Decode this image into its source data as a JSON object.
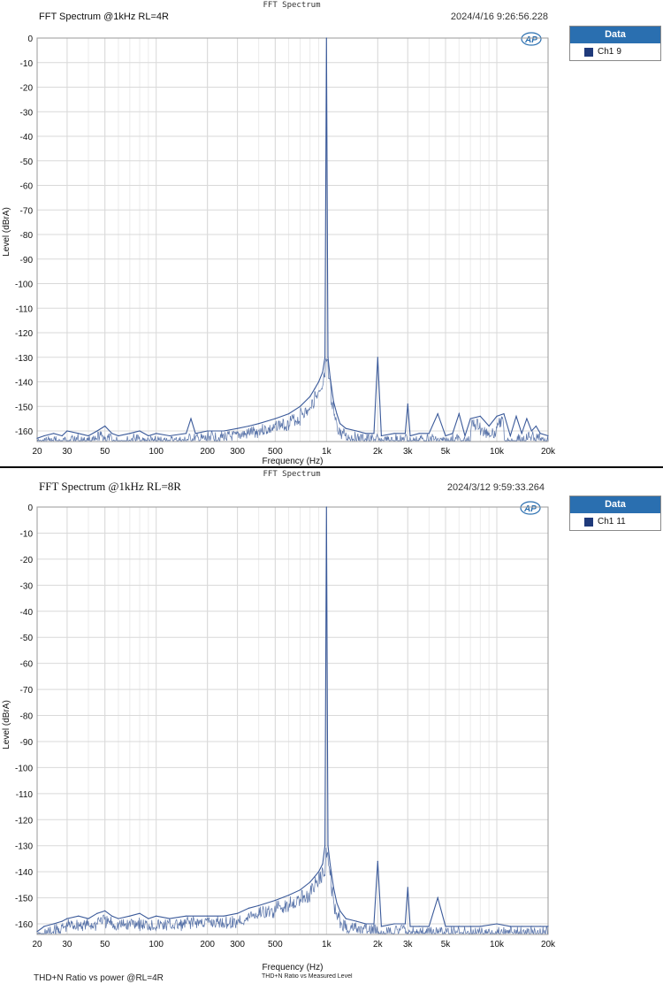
{
  "charts": [
    {
      "id": "top",
      "header_title": "FFT Spectrum",
      "title": "FFT Spectrum @1kHz RL=4R",
      "timestamp": "2024/4/16 9:26:56.228",
      "logo_text": "AP",
      "legend_title": "Data",
      "legend_entry": "Ch1",
      "legend_count": "9",
      "xlabel": "Frequency (Hz)",
      "ylabel": "Level (dBrA)"
    },
    {
      "id": "bottom",
      "header_title": "FFT Spectrum",
      "title": "FFT Spectrum @1kHz RL=8R",
      "timestamp": "2024/3/12 9:59:33.264",
      "logo_text": "AP",
      "legend_title": "Data",
      "legend_entry": "Ch1",
      "legend_count": "11",
      "xlabel": "Frequency (Hz)",
      "ylabel": "Level (dBrA)"
    }
  ],
  "footer": {
    "left_text": "THD+N Ratio vs power @RL=4R",
    "center_text": "THD+N Ratio vs Measured Level"
  },
  "colors": {
    "trace": "#3b5a9a",
    "legend_header": "#2a6fb0",
    "grid": "#d9d9d9"
  },
  "chart_data": [
    {
      "type": "line",
      "title": "FFT Spectrum @1kHz RL=4R",
      "xlabel": "Frequency (Hz)",
      "ylabel": "Level (dBrA)",
      "x_scale": "log",
      "xlim": [
        20,
        20000
      ],
      "ylim": [
        -165,
        0
      ],
      "x_ticks": [
        20,
        30,
        50,
        100,
        200,
        300,
        500,
        1000,
        2000,
        3000,
        5000,
        10000,
        20000
      ],
      "x_tick_labels": [
        "20",
        "30",
        "50",
        "100",
        "200",
        "300",
        "500",
        "1k",
        "2k",
        "3k",
        "5k",
        "10k",
        "20k"
      ],
      "y_ticks": [
        0,
        -10,
        -20,
        -30,
        -40,
        -50,
        -60,
        -70,
        -80,
        -90,
        -100,
        -110,
        -120,
        -130,
        -140,
        -150,
        -160
      ],
      "grid": true,
      "legend": "right",
      "series": [
        {
          "name": "Ch1",
          "x": [
            20,
            22,
            25,
            28,
            30,
            35,
            40,
            45,
            50,
            55,
            60,
            70,
            80,
            90,
            100,
            120,
            150,
            160,
            170,
            200,
            250,
            300,
            350,
            400,
            500,
            600,
            700,
            800,
            850,
            900,
            950,
            980,
            1000,
            1020,
            1050,
            1100,
            1150,
            1200,
            1300,
            1500,
            1700,
            1900,
            2000,
            2100,
            2500,
            2900,
            3000,
            3100,
            3500,
            4000,
            4500,
            5000,
            5500,
            6000,
            6500,
            7000,
            8000,
            9000,
            10000,
            11000,
            12000,
            13000,
            14000,
            15000,
            16000,
            17000,
            18000,
            20000
          ],
          "y": [
            -163,
            -162,
            -161,
            -162,
            -160,
            -161,
            -162,
            -160,
            -158,
            -161,
            -162,
            -161,
            -160,
            -162,
            -161,
            -162,
            -161,
            -155,
            -161,
            -160,
            -160,
            -159,
            -158,
            -157,
            -155,
            -153,
            -150,
            -146,
            -143,
            -140,
            -136,
            -130,
            0,
            -130,
            -138,
            -148,
            -153,
            -157,
            -159,
            -160,
            -161,
            -161,
            -130,
            -162,
            -161,
            -161,
            -149,
            -162,
            -161,
            -161,
            -153,
            -162,
            -161,
            -153,
            -162,
            -155,
            -154,
            -158,
            -154,
            -153,
            -162,
            -154,
            -161,
            -155,
            -160,
            -158,
            -161,
            -162
          ]
        }
      ]
    },
    {
      "type": "line",
      "title": "FFT Spectrum @1kHz RL=8R",
      "xlabel": "Frequency (Hz)",
      "ylabel": "Level (dBrA)",
      "x_scale": "log",
      "xlim": [
        20,
        20000
      ],
      "ylim": [
        -165,
        0
      ],
      "x_ticks": [
        20,
        30,
        50,
        100,
        200,
        300,
        500,
        1000,
        2000,
        3000,
        5000,
        10000,
        20000
      ],
      "x_tick_labels": [
        "20",
        "30",
        "50",
        "100",
        "200",
        "300",
        "500",
        "1k",
        "2k",
        "3k",
        "5k",
        "10k",
        "20k"
      ],
      "y_ticks": [
        0,
        -10,
        -20,
        -30,
        -40,
        -50,
        -60,
        -70,
        -80,
        -90,
        -100,
        -110,
        -120,
        -130,
        -140,
        -150,
        -160
      ],
      "grid": true,
      "legend": "right",
      "series": [
        {
          "name": "Ch1",
          "x": [
            20,
            22,
            25,
            28,
            30,
            35,
            40,
            45,
            50,
            55,
            60,
            70,
            80,
            90,
            100,
            120,
            150,
            200,
            250,
            300,
            350,
            400,
            500,
            600,
            700,
            800,
            850,
            900,
            950,
            980,
            1000,
            1020,
            1050,
            1100,
            1150,
            1200,
            1300,
            1500,
            1700,
            1900,
            2000,
            2100,
            2500,
            2900,
            3000,
            3100,
            3500,
            4000,
            4500,
            5000,
            6000,
            7000,
            8000,
            10000,
            12000,
            14000,
            16000,
            18000,
            20000
          ],
          "y": [
            -163,
            -161,
            -160,
            -159,
            -158,
            -157,
            -158,
            -156,
            -155,
            -157,
            -158,
            -157,
            -156,
            -158,
            -157,
            -158,
            -157,
            -157,
            -157,
            -156,
            -154,
            -153,
            -151,
            -149,
            -147,
            -144,
            -142,
            -140,
            -137,
            -130,
            0,
            -130,
            -137,
            -146,
            -152,
            -155,
            -158,
            -159,
            -160,
            -160,
            -136,
            -161,
            -160,
            -160,
            -146,
            -161,
            -161,
            -161,
            -150,
            -161,
            -161,
            -161,
            -161,
            -160,
            -161,
            -161,
            -161,
            -161,
            -161
          ]
        }
      ]
    }
  ]
}
